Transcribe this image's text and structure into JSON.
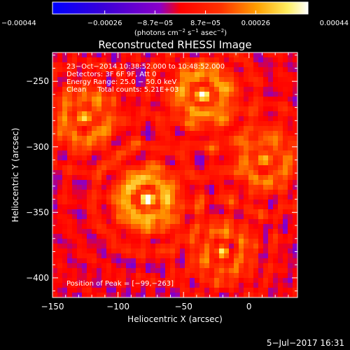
{
  "chart_data": {
    "type": "heatmap",
    "title": "Reconstructed RHESSI Image",
    "xlabel": "Heliocentric X (arcsec)",
    "ylabel": "Heliocentric Y (arcsec)",
    "xlim": [
      -150,
      37
    ],
    "ylim": [
      -415,
      -228
    ],
    "x_ticks": [
      -150,
      -100,
      -50,
      0
    ],
    "x_tick_labels": [
      "−150",
      "−100",
      "−50",
      "0"
    ],
    "y_ticks": [
      -250,
      -300,
      -350,
      -400
    ],
    "y_tick_labels": [
      "−250",
      "−300",
      "−350",
      "−400"
    ],
    "colorbar": {
      "range": [
        -0.00044,
        0.00044
      ],
      "ticks": [
        -0.00044,
        -0.00026,
        -8.7e-05,
        8.7e-05,
        0.00026,
        0.00044
      ],
      "tick_labels": [
        "−0.00044",
        "−0.00026",
        "−8.7e−05",
        "8.7e−05",
        "0.00026",
        "0.00044"
      ],
      "unit_parts": [
        "(photons cm",
        "−2",
        " s",
        "−1",
        " asec",
        "−2",
        ")"
      ]
    },
    "annotations": [
      "23−Oct−2014 10:38:52.000 to 10:48:52.000",
      "Detectors: 3F 6F 9F, Att 0",
      "Energy Range: 25.0 − 50.0 keV",
      "Clean     Total counts: 5.21E+03"
    ],
    "peak_label": "Position of Peak = [−99,−263]",
    "peak": [
      -99,
      -263
    ],
    "bright_sources": [
      {
        "x": -78,
        "y": -340,
        "value": 0.00044
      },
      {
        "x": -35,
        "y": -260,
        "value": 0.00038
      },
      {
        "x": -125,
        "y": -278,
        "value": 0.00032
      },
      {
        "x": 12,
        "y": -310,
        "value": 0.0003
      },
      {
        "x": -20,
        "y": -380,
        "value": 0.00026
      }
    ],
    "grid": false
  },
  "footer": {
    "date": "5−Jul−2017 16:31"
  }
}
